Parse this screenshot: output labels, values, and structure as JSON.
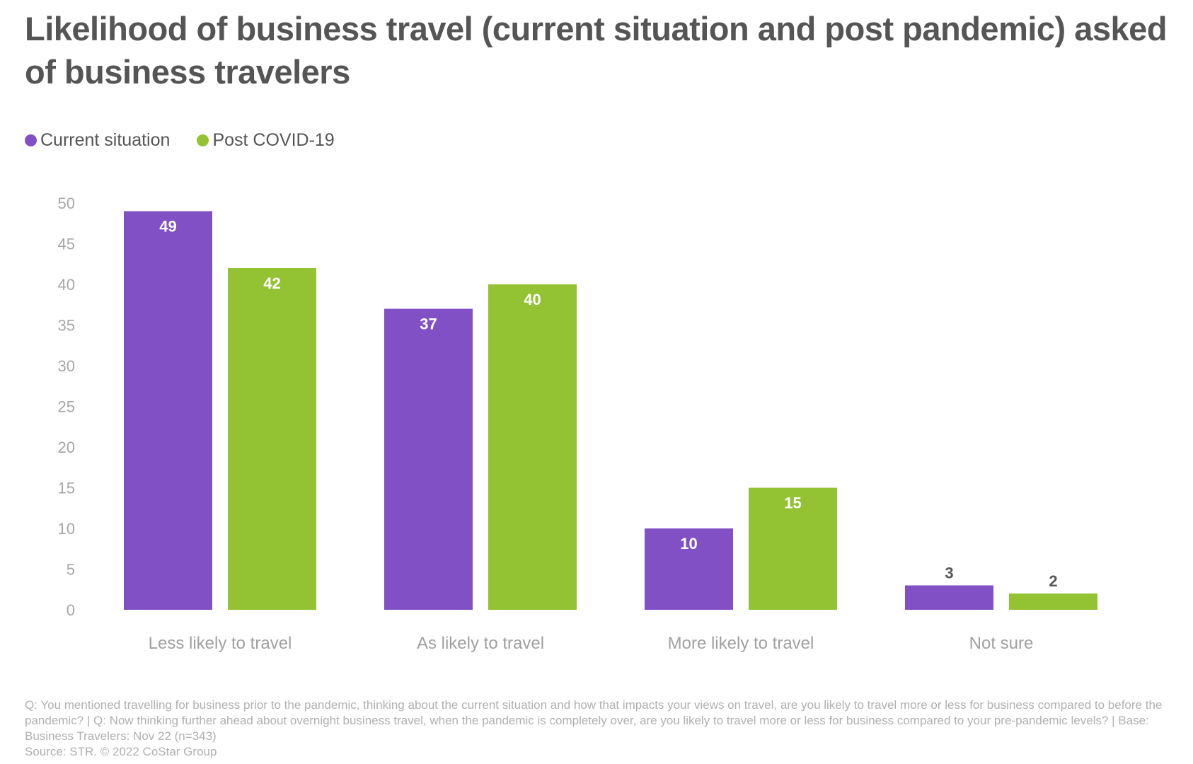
{
  "title": "Likelihood of business travel (current situation and post pandemic) asked of business travelers",
  "footnote": {
    "question": "Q: You mentioned travelling for business prior to the pandemic, thinking about the current situation and how that impacts your views on travel, are you likely to travel more or less for business compared to before the pandemic? | Q: Now thinking further ahead about overnight business travel, when the pandemic is completely over, are you likely to travel more or less for business compared to your pre-pandemic levels? | Base: Business Travelers: Nov 22 (n=343)",
    "source": "Source: STR. © 2022 CoStar Group"
  },
  "chart_data": {
    "type": "bar",
    "title": "Likelihood of business travel (current situation and post pandemic) asked of business travelers",
    "xlabel": "",
    "ylabel": "",
    "categories": [
      "Less likely to travel",
      "As likely to travel",
      "More likely to travel",
      "Not sure"
    ],
    "series": [
      {
        "name": "Current situation",
        "color": "#8150c4",
        "values": [
          49,
          37,
          10,
          3
        ]
      },
      {
        "name": "Post COVID-19",
        "color": "#93c232",
        "values": [
          42,
          40,
          15,
          2
        ]
      }
    ],
    "ylim": [
      0,
      50
    ],
    "yticks": [
      0,
      5,
      10,
      15,
      20,
      25,
      30,
      35,
      40,
      45,
      50
    ],
    "grid": false,
    "legend_position": "top-left",
    "data_labels": true
  }
}
